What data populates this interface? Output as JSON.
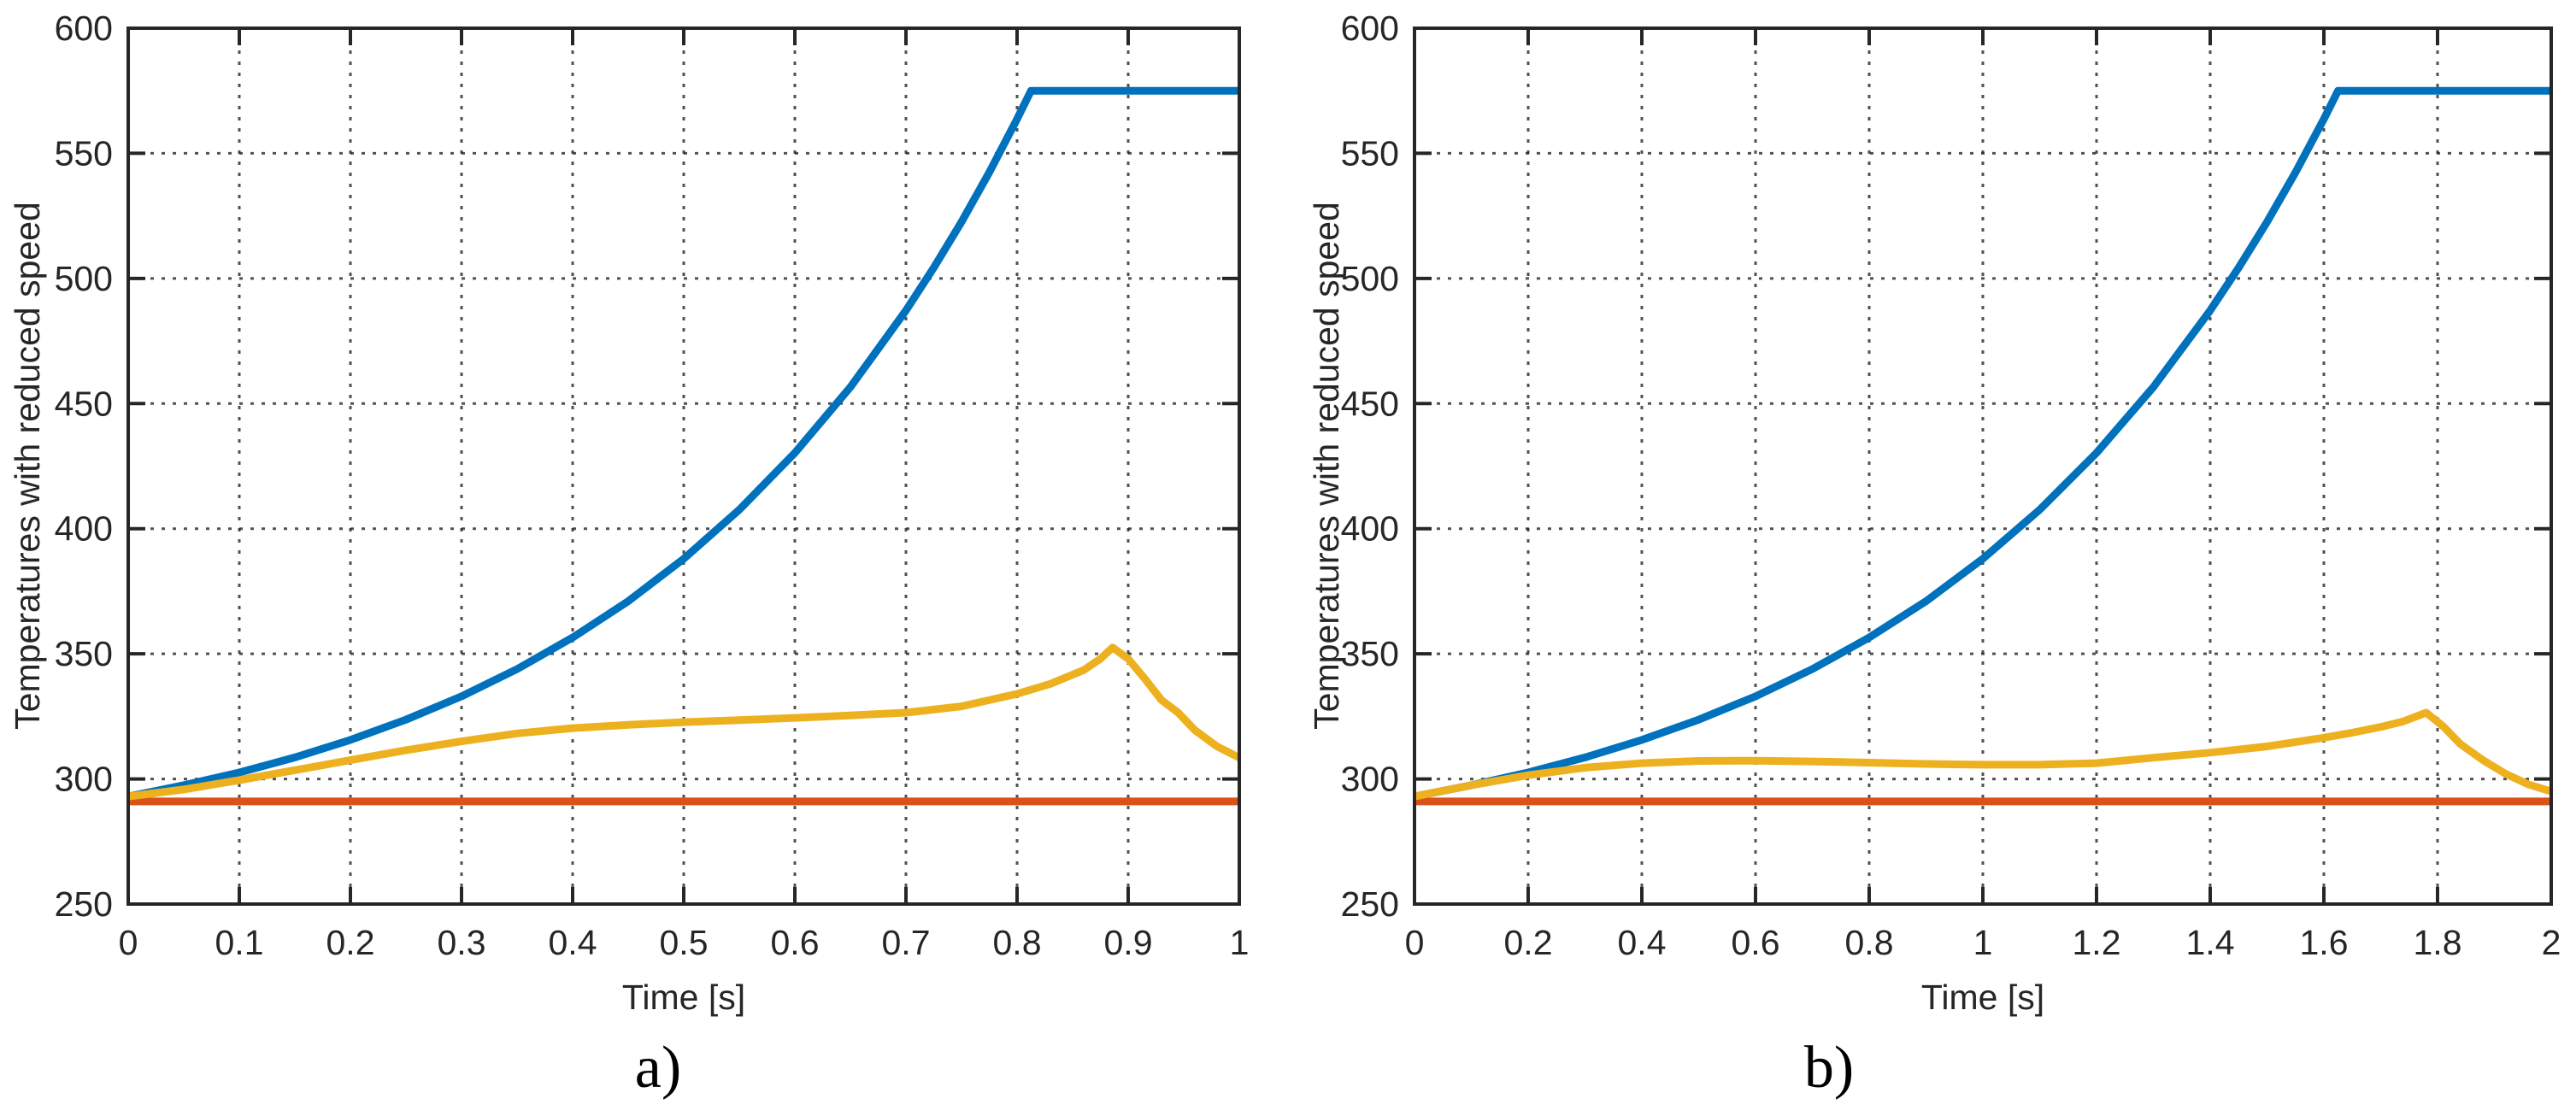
{
  "figure": {
    "background": "#ffffff",
    "text_color": "#262626",
    "axis_color": "#262626",
    "grid_color": "#262626",
    "series_palette": {
      "blue": "#0072BD",
      "orange_red": "#D95319",
      "yellow": "#EDB120"
    }
  },
  "chart_data": [
    {
      "type": "line",
      "panel": "a",
      "caption": "a)",
      "title": "",
      "xlabel": "Time [s]",
      "ylabel": "Temperatures with reduced speed",
      "xlim": [
        0,
        1
      ],
      "ylim": [
        250,
        600
      ],
      "xticks": [
        0,
        0.1,
        0.2,
        0.3,
        0.4,
        0.5,
        0.6,
        0.7,
        0.8,
        0.9,
        1
      ],
      "xtick_labels": [
        "0",
        "0.1",
        "0.2",
        "0.3",
        "0.4",
        "0.5",
        "0.6",
        "0.7",
        "0.8",
        "0.9",
        "1"
      ],
      "yticks": [
        250,
        300,
        350,
        400,
        450,
        500,
        550,
        600
      ],
      "ytick_labels": [
        "250",
        "300",
        "350",
        "400",
        "450",
        "500",
        "550",
        "600"
      ],
      "grid": "dotted",
      "box": true,
      "tick_direction": "in",
      "legend": null,
      "series": [
        {
          "name": "blue-rising-saturating",
          "color": "#0072BD",
          "points": [
            [
              0,
              293
            ],
            [
              0.05,
              297.5
            ],
            [
              0.1,
              302.6
            ],
            [
              0.15,
              308.6
            ],
            [
              0.2,
              315.6
            ],
            [
              0.25,
              323.7
            ],
            [
              0.3,
              333
            ],
            [
              0.35,
              343.9
            ],
            [
              0.4,
              356.5
            ],
            [
              0.45,
              371
            ],
            [
              0.5,
              388
            ],
            [
              0.55,
              407.6
            ],
            [
              0.6,
              430.3
            ],
            [
              0.65,
              456.6
            ],
            [
              0.7,
              487.2
            ],
            [
              0.725,
              504.3
            ],
            [
              0.75,
              522.6
            ],
            [
              0.775,
              542.4
            ],
            [
              0.8,
              563.7
            ],
            [
              0.8125,
              575
            ],
            [
              0.85,
              575
            ],
            [
              0.9,
              575
            ],
            [
              0.95,
              575
            ],
            [
              1,
              575
            ]
          ]
        },
        {
          "name": "red-constant-ambient",
          "color": "#D95319",
          "points": [
            [
              0,
              291
            ],
            [
              0.25,
              291
            ],
            [
              0.5,
              291
            ],
            [
              0.75,
              291
            ],
            [
              1,
              291
            ]
          ]
        },
        {
          "name": "yellow-peaked",
          "color": "#EDB120",
          "points": [
            [
              0,
              293
            ],
            [
              0.05,
              295.8
            ],
            [
              0.1,
              299.5
            ],
            [
              0.15,
              303.5
            ],
            [
              0.2,
              307.5
            ],
            [
              0.25,
              311.5
            ],
            [
              0.3,
              315
            ],
            [
              0.35,
              318.2
            ],
            [
              0.4,
              320.3
            ],
            [
              0.45,
              321.6
            ],
            [
              0.5,
              322.7
            ],
            [
              0.55,
              323.5
            ],
            [
              0.6,
              324.4
            ],
            [
              0.65,
              325.4
            ],
            [
              0.7,
              326.5
            ],
            [
              0.75,
              329
            ],
            [
              0.8,
              334
            ],
            [
              0.83,
              338
            ],
            [
              0.86,
              343.5
            ],
            [
              0.875,
              348
            ],
            [
              0.886,
              352.5
            ],
            [
              0.9,
              348
            ],
            [
              0.915,
              340
            ],
            [
              0.93,
              331.5
            ],
            [
              0.945,
              326.5
            ],
            [
              0.96,
              319.5
            ],
            [
              0.98,
              313
            ],
            [
              1,
              308.5
            ]
          ]
        }
      ]
    },
    {
      "type": "line",
      "panel": "b",
      "caption": "b)",
      "title": "",
      "xlabel": "Time [s]",
      "ylabel": "Temperatures with reduced speed",
      "xlim": [
        0,
        2
      ],
      "ylim": [
        250,
        600
      ],
      "xticks": [
        0,
        0.2,
        0.4,
        0.6,
        0.8,
        1,
        1.2,
        1.4,
        1.6,
        1.8,
        2
      ],
      "xtick_labels": [
        "0",
        "0.2",
        "0.4",
        "0.6",
        "0.8",
        "1",
        "1.2",
        "1.4",
        "1.6",
        "1.8",
        "2"
      ],
      "yticks": [
        250,
        300,
        350,
        400,
        450,
        500,
        550,
        600
      ],
      "ytick_labels": [
        "250",
        "300",
        "350",
        "400",
        "450",
        "500",
        "550",
        "600"
      ],
      "grid": "dotted",
      "box": true,
      "tick_direction": "in",
      "legend": null,
      "series": [
        {
          "name": "blue-rising-saturating",
          "color": "#0072BD",
          "points": [
            [
              0,
              293
            ],
            [
              0.1,
              297.5
            ],
            [
              0.2,
              302.6
            ],
            [
              0.3,
              308.6
            ],
            [
              0.4,
              315.6
            ],
            [
              0.5,
              323.7
            ],
            [
              0.6,
              333
            ],
            [
              0.7,
              343.9
            ],
            [
              0.8,
              356.5
            ],
            [
              0.9,
              371
            ],
            [
              1,
              388
            ],
            [
              1.1,
              407.6
            ],
            [
              1.2,
              430.3
            ],
            [
              1.3,
              456.6
            ],
            [
              1.4,
              487.2
            ],
            [
              1.45,
              504.3
            ],
            [
              1.5,
              522.6
            ],
            [
              1.55,
              542.4
            ],
            [
              1.6,
              563.7
            ],
            [
              1.625,
              575
            ],
            [
              1.7,
              575
            ],
            [
              1.8,
              575
            ],
            [
              1.9,
              575
            ],
            [
              2,
              575
            ]
          ]
        },
        {
          "name": "red-constant-ambient",
          "color": "#D95319",
          "points": [
            [
              0,
              291
            ],
            [
              0.5,
              291
            ],
            [
              1,
              291
            ],
            [
              1.5,
              291
            ],
            [
              2,
              291
            ]
          ]
        },
        {
          "name": "yellow-peaked",
          "color": "#EDB120",
          "points": [
            [
              0,
              293
            ],
            [
              0.1,
              297.5
            ],
            [
              0.2,
              301.5
            ],
            [
              0.3,
              304.5
            ],
            [
              0.4,
              306.3
            ],
            [
              0.5,
              307.2
            ],
            [
              0.6,
              307.3
            ],
            [
              0.7,
              307
            ],
            [
              0.8,
              306.5
            ],
            [
              0.9,
              306
            ],
            [
              1,
              305.7
            ],
            [
              1.1,
              305.7
            ],
            [
              1.2,
              306.3
            ],
            [
              1.3,
              308.5
            ],
            [
              1.4,
              310.5
            ],
            [
              1.5,
              313
            ],
            [
              1.6,
              316.5
            ],
            [
              1.65,
              318.5
            ],
            [
              1.7,
              320.8
            ],
            [
              1.74,
              323
            ],
            [
              1.78,
              326.5
            ],
            [
              1.81,
              321
            ],
            [
              1.84,
              314
            ],
            [
              1.88,
              307.5
            ],
            [
              1.92,
              302
            ],
            [
              1.96,
              297.8
            ],
            [
              2,
              295
            ]
          ]
        }
      ]
    }
  ]
}
